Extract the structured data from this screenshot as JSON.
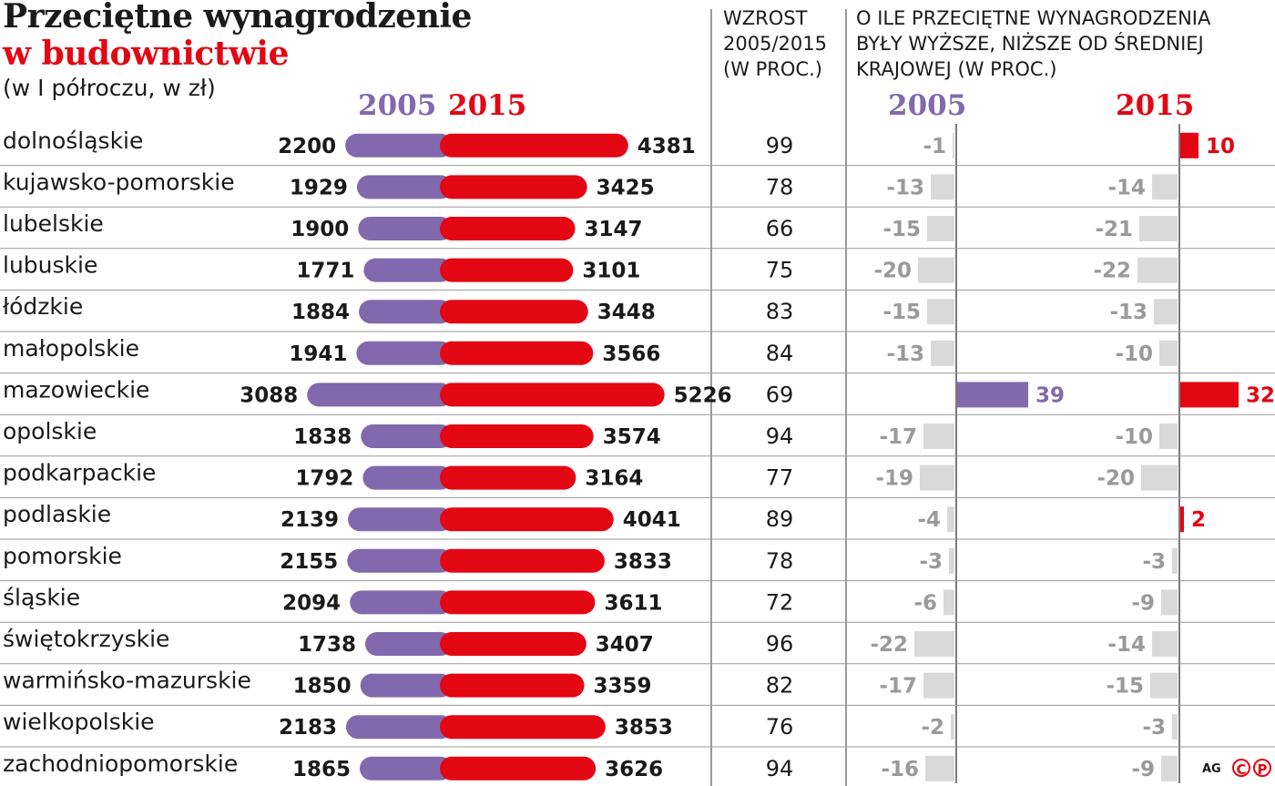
{
  "title": {
    "line1": "Przeciętne wynagrodzenie",
    "line2": "w budownictwie",
    "subtitle": "(w I półroczu, w zł)"
  },
  "columns": {
    "growth": "WZROST\n2005/2015\n(W PROC.)",
    "diff": "O ILE PRZECIĘTNE WYNAGRODZENIA\nBYŁY WYŻSZE, NIŻSZE OD ŚREDNIEJ\nKRAJOWEJ (W PROC.)"
  },
  "years": {
    "a": "2005",
    "b": "2015"
  },
  "colors": {
    "y2005": "#8269ad",
    "y2015": "#e30613",
    "neg": "#d9d9d9",
    "negText": "#9a9a9a",
    "text": "#1a1a1a"
  },
  "footer": {
    "author": "AG",
    "c": "C",
    "p": "P"
  },
  "chart_data": {
    "type": "bar",
    "title": "Przeciętne wynagrodzenie w budownictwie (w I półroczu, w zł)",
    "categories": [
      "dolnośląskie",
      "kujawsko-pomorskie",
      "lubelskie",
      "lubuskie",
      "łódzkie",
      "małopolskie",
      "mazowieckie",
      "opolskie",
      "podkarpackie",
      "podlaskie",
      "pomorskie",
      "śląskie",
      "świętokrzyskie",
      "warmińsko-mazurskie",
      "wielkopolskie",
      "zachodniopomorskie"
    ],
    "series": [
      {
        "name": "2005",
        "values": [
          2200,
          1929,
          1900,
          1771,
          1884,
          1941,
          3088,
          1838,
          1792,
          2139,
          2155,
          2094,
          1738,
          1850,
          2183,
          1865
        ]
      },
      {
        "name": "2015",
        "values": [
          4381,
          3425,
          3147,
          3101,
          3448,
          3566,
          5226,
          3574,
          3164,
          4041,
          3833,
          3611,
          3407,
          3359,
          3853,
          3626
        ]
      }
    ],
    "growth": [
      99,
      78,
      66,
      75,
      83,
      84,
      69,
      94,
      77,
      89,
      78,
      72,
      96,
      82,
      76,
      94
    ],
    "diff2005": [
      -1,
      -13,
      -15,
      -20,
      -15,
      -13,
      39,
      -17,
      -19,
      -4,
      -3,
      -6,
      -22,
      -17,
      -2,
      -16
    ],
    "diff2015": [
      10,
      -14,
      -21,
      -22,
      -13,
      -10,
      32,
      -10,
      -20,
      2,
      -3,
      -9,
      -14,
      -15,
      -3,
      -9
    ]
  }
}
